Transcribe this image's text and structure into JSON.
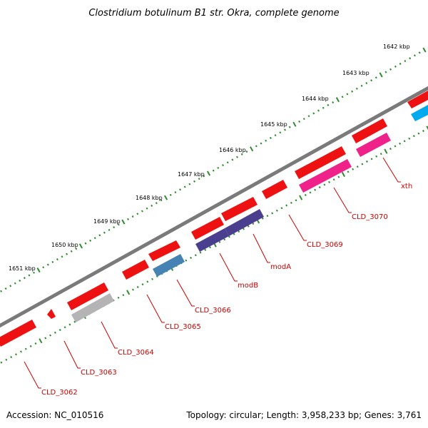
{
  "title": "Clostridium botulinum B1 str. Okra, complete genome",
  "footer": {
    "accession": "Accession: NC_010516",
    "stats": "Topology: circular; Length: 3,958,233 bp; Genes: 3,761"
  },
  "colors": {
    "backbone": "#7a7a7a",
    "tick": "#2e8b2e",
    "label": "#cc0000",
    "gene_red": "#ee1111",
    "gene_grey": "#b4b4b4",
    "gene_steelblue": "#4682b4",
    "gene_navy": "#4a3f8f",
    "gene_pink": "#ee2288",
    "gene_cyan": "#00aaee"
  },
  "scale_labels": [
    "1642 kbp",
    "1643 kbp",
    "1644 kbp",
    "1645 kbp",
    "1646 kbp",
    "1647 kbp",
    "1648 kbp",
    "1649 kbp",
    "1650 kbp",
    "1651 kbp"
  ],
  "gene_labels": [
    "CLD_3062",
    "CLD_3063",
    "CLD_3064",
    "CLD_3065",
    "CLD_3066",
    "modB",
    "modA",
    "CLD_3069",
    "CLD_3070",
    "xth"
  ]
}
